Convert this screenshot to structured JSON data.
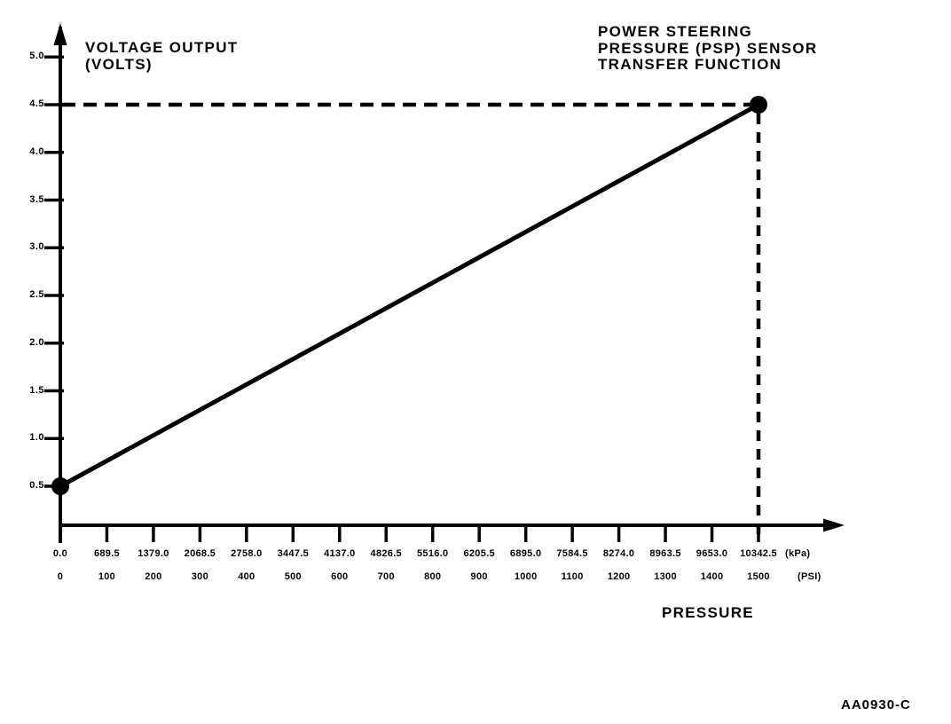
{
  "title": {
    "line1": "POWER STEERING",
    "line2": "PRESSURE (PSP) SENSOR",
    "line3": "TRANSFER FUNCTION"
  },
  "y_axis": {
    "title_line1": "VOLTAGE OUTPUT",
    "title_line2": "(VOLTS)"
  },
  "x_axis": {
    "title": "PRESSURE",
    "kpa_unit": "(kPa)",
    "psi_unit": "(PSI)"
  },
  "figure_code": "AA0930-C",
  "colors": {
    "ink": "#020202",
    "paper": "#ffffff"
  },
  "chart_data": {
    "type": "line",
    "title": "POWER STEERING PRESSURE (PSP) SENSOR TRANSFER FUNCTION",
    "xlabel": "PRESSURE",
    "ylabel": "VOLTAGE OUTPUT (VOLTS)",
    "x_tick_values_psi": [
      0,
      100,
      200,
      300,
      400,
      500,
      600,
      700,
      800,
      900,
      1000,
      1100,
      1200,
      1300,
      1400,
      1500
    ],
    "x_tick_labels_kpa": [
      "0.0",
      "689.5",
      "1379.0",
      "2068.5",
      "2758.0",
      "3447.5",
      "4137.0",
      "4826.5",
      "5516.0",
      "6205.5",
      "6895.0",
      "7584.5",
      "8274.0",
      "8963.5",
      "9653.0",
      "10342.5"
    ],
    "x_tick_labels_psi": [
      "0",
      "100",
      "200",
      "300",
      "400",
      "500",
      "600",
      "700",
      "800",
      "900",
      "1000",
      "1100",
      "1200",
      "1300",
      "1400",
      "1500"
    ],
    "y_tick_values_volts": [
      0.5,
      1.0,
      1.5,
      2.0,
      2.5,
      3.0,
      3.5,
      4.0,
      4.5,
      5.0
    ],
    "y_tick_labels": [
      "0.5",
      "1.0",
      "1.5",
      "2.0",
      "2.5",
      "3.0",
      "3.5",
      "4.0",
      "4.5",
      "5.0"
    ],
    "series": [
      {
        "name": "PSP sensor transfer function",
        "points": [
          {
            "psi": 0,
            "kpa": 0.0,
            "volts": 0.5
          },
          {
            "psi": 1500,
            "kpa": 10342.5,
            "volts": 4.5
          }
        ]
      }
    ],
    "reference_dashes": {
      "horizontal_at_volts": 4.5,
      "vertical_at_psi": 1500
    },
    "xlim_psi": [
      0,
      1500
    ],
    "ylim_volts": [
      0.5,
      5.0
    ],
    "grid": false,
    "legend": false
  }
}
